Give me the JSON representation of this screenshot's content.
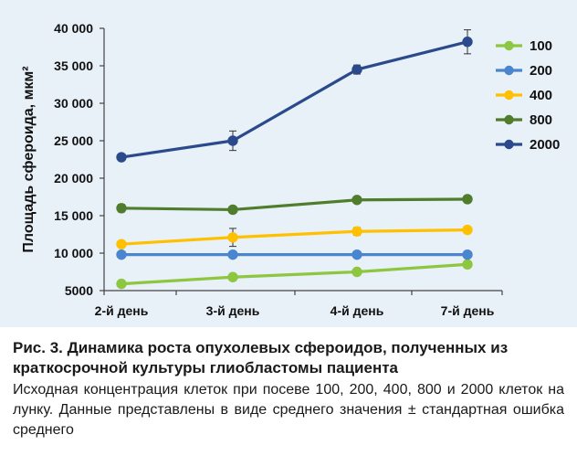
{
  "chart_data": {
    "type": "line",
    "categories": [
      "2-й день",
      "3-й день",
      "4-й день",
      "7-й день"
    ],
    "ylabel": "Площадь сфероида, мкм²",
    "xlabel": "",
    "ylim": [
      5000,
      40000
    ],
    "ytick_values": [
      5000,
      10000,
      15000,
      20000,
      25000,
      30000,
      35000,
      40000
    ],
    "ytick_labels": [
      "5000",
      "10 000",
      "15 000",
      "20 000",
      "25 000",
      "30 000",
      "35 000",
      "40 000"
    ],
    "grid": false,
    "legend_position": "right",
    "series": [
      {
        "name": "100",
        "color": "#8dc63f",
        "values": [
          5900,
          6800,
          7500,
          8500
        ],
        "errors": [
          0,
          400,
          0,
          0
        ]
      },
      {
        "name": "200",
        "color": "#4a86cf",
        "values": [
          9800,
          9800,
          9800,
          9800
        ],
        "errors": [
          0,
          0,
          0,
          0
        ]
      },
      {
        "name": "400",
        "color": "#ffc000",
        "values": [
          11200,
          12100,
          12900,
          13100
        ],
        "errors": [
          0,
          1200,
          500,
          0
        ]
      },
      {
        "name": "800",
        "color": "#4f7d2c",
        "values": [
          16000,
          15800,
          17100,
          17200
        ],
        "errors": [
          500,
          300,
          300,
          300
        ]
      },
      {
        "name": "2000",
        "color": "#2b4a8c",
        "values": [
          22800,
          25000,
          34500,
          38200
        ],
        "errors": [
          0,
          1300,
          600,
          1600
        ]
      }
    ]
  },
  "caption": {
    "title": "Рис. 3. Динамика роста опухолевых сфероидов, полученных из краткосрочной культуры глиобластомы пациента",
    "text": "Исходная концентрация клеток при посеве 100, 200, 400, 800 и 2000 клеток на лунку. Данные представлены в виде среднего значения ± стандартная ошибка среднего"
  }
}
